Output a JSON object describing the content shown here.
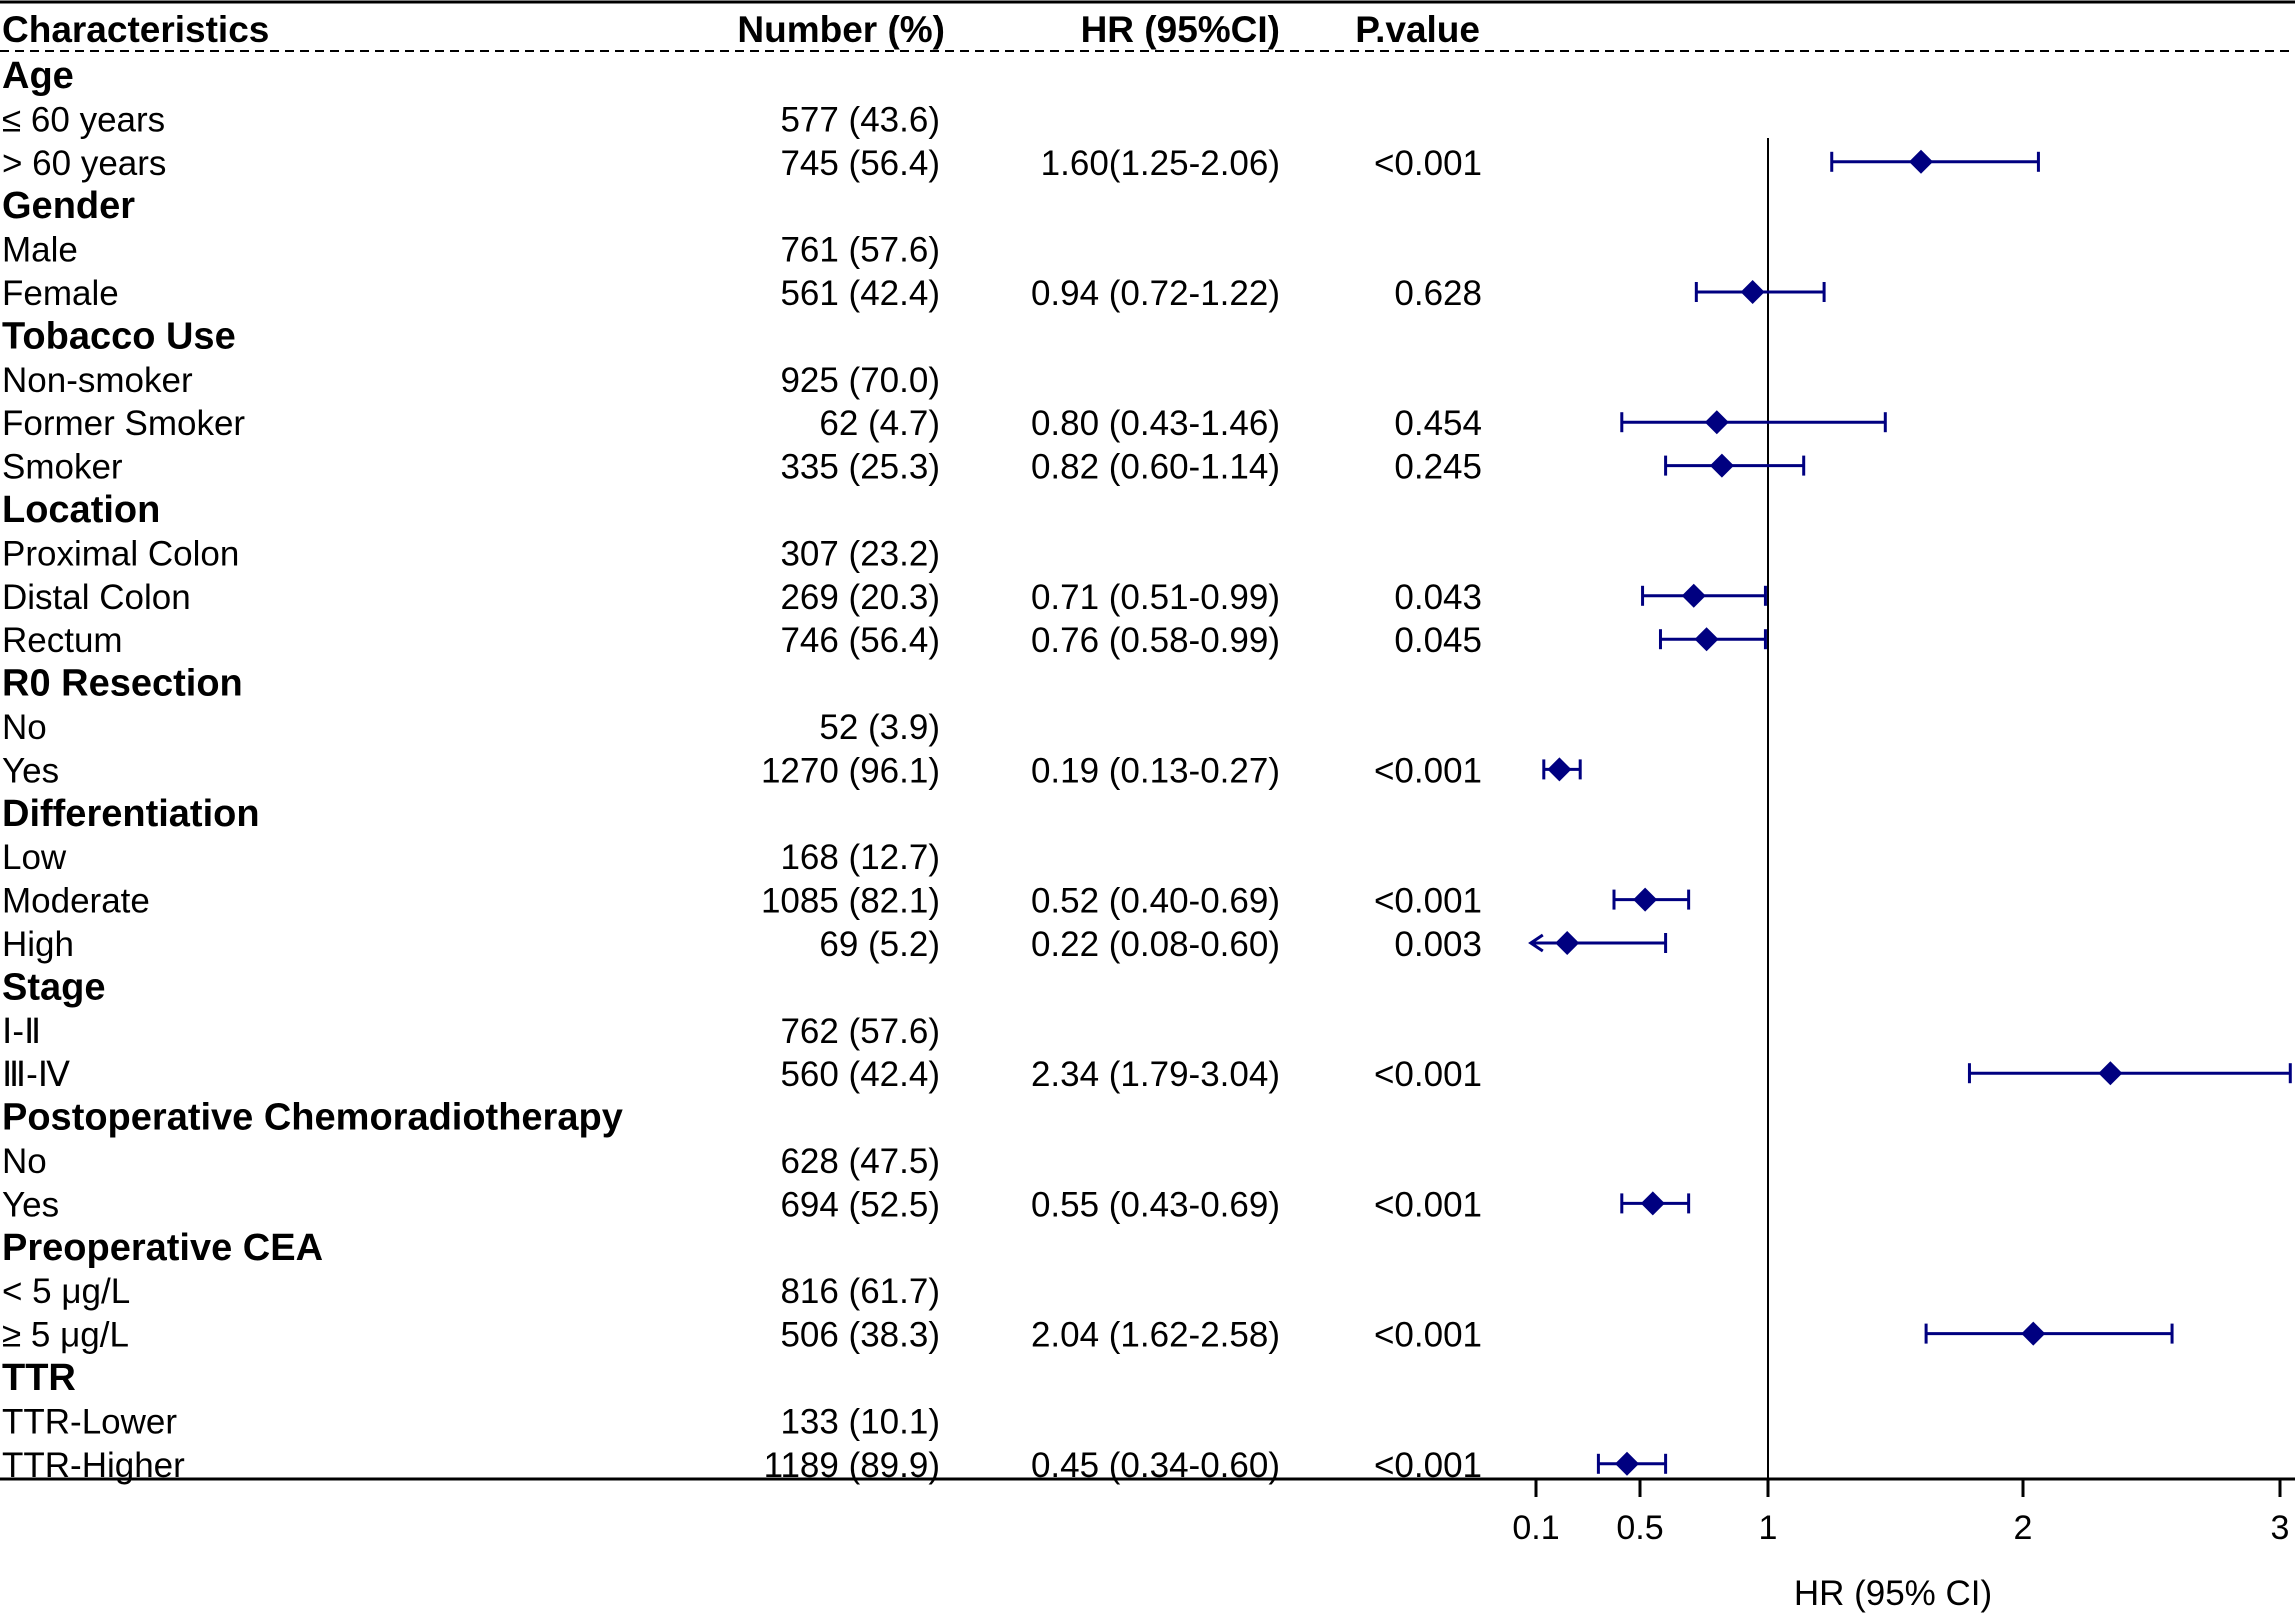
{
  "chart_data": {
    "type": "forest",
    "headers": {
      "characteristics": "Characteristics",
      "number": "Number (%)",
      "hr": "HR (95%CI)",
      "pvalue": "P.value"
    },
    "rows": [
      {
        "kind": "group",
        "label": "Age"
      },
      {
        "kind": "item",
        "label": "≤ 60 years",
        "number": "577 (43.6)"
      },
      {
        "kind": "item",
        "label": "> 60 years",
        "number": "745 (56.4)",
        "hr_text": "1.60(1.25-2.06)",
        "p": "<0.001",
        "hr": 1.6,
        "lo": 1.25,
        "hi": 2.06
      },
      {
        "kind": "group",
        "label": "Gender"
      },
      {
        "kind": "item",
        "label": "Male",
        "number": "761 (57.6)"
      },
      {
        "kind": "item",
        "label": "Female",
        "number": "561 (42.4)",
        "hr_text": "0.94 (0.72-1.22)",
        "p": "0.628",
        "hr": 0.94,
        "lo": 0.72,
        "hi": 1.22
      },
      {
        "kind": "group",
        "label": "Tobacco Use"
      },
      {
        "kind": "item",
        "label": "Non-smoker",
        "number": "925 (70.0)"
      },
      {
        "kind": "item",
        "label": "Former Smoker",
        "number": "62 (4.7)",
        "hr_text": "0.80 (0.43-1.46)",
        "p": "0.454",
        "hr": 0.8,
        "lo": 0.43,
        "hi": 1.46
      },
      {
        "kind": "item",
        "label": "Smoker",
        "number": "335 (25.3)",
        "hr_text": "0.82 (0.60-1.14)",
        "p": "0.245",
        "hr": 0.82,
        "lo": 0.6,
        "hi": 1.14
      },
      {
        "kind": "group",
        "label": "Location"
      },
      {
        "kind": "item",
        "label": "Proximal Colon",
        "number": "307 (23.2)"
      },
      {
        "kind": "item",
        "label": "Distal Colon",
        "number": "269 (20.3)",
        "hr_text": "0.71 (0.51-0.99)",
        "p": "0.043",
        "hr": 0.71,
        "lo": 0.51,
        "hi": 0.99
      },
      {
        "kind": "item",
        "label": "Rectum",
        "number": "746 (56.4)",
        "hr_text": "0.76 (0.58-0.99)",
        "p": "0.045",
        "hr": 0.76,
        "lo": 0.58,
        "hi": 0.99
      },
      {
        "kind": "group",
        "label": "R0 Resection"
      },
      {
        "kind": "item",
        "label": "No",
        "number": "52 (3.9)"
      },
      {
        "kind": "item",
        "label": "Yes",
        "number": "1270 (96.1)",
        "hr_text": "0.19 (0.13-0.27)",
        "p": "<0.001",
        "hr": 0.19,
        "lo": 0.13,
        "hi": 0.27
      },
      {
        "kind": "group",
        "label": "Differentiation"
      },
      {
        "kind": "item",
        "label": "Low",
        "number": "168 (12.7)"
      },
      {
        "kind": "item",
        "label": "Moderate",
        "number": "1085 (82.1)",
        "hr_text": "0.52 (0.40-0.69)",
        "p": "<0.001",
        "hr": 0.52,
        "lo": 0.4,
        "hi": 0.69
      },
      {
        "kind": "item",
        "label": "High",
        "number": "69 (5.2)",
        "hr_text": "0.22 (0.08-0.60)",
        "p": "0.003",
        "hr": 0.22,
        "lo": 0.08,
        "hi": 0.6,
        "arrow_left": true
      },
      {
        "kind": "group",
        "label": "Stage"
      },
      {
        "kind": "item",
        "label": "Ⅰ-Ⅱ",
        "number": "762 (57.6)"
      },
      {
        "kind": "item",
        "label": "Ⅲ-Ⅳ",
        "number": "560 (42.4)",
        "hr_text": "2.34 (1.79-3.04)",
        "p": "<0.001",
        "hr": 2.34,
        "lo": 1.79,
        "hi": 3.04
      },
      {
        "kind": "group",
        "label": "Postoperative Chemoradiotherapy"
      },
      {
        "kind": "item",
        "label": "No",
        "number": "628 (47.5)"
      },
      {
        "kind": "item",
        "label": "Yes",
        "number": "694 (52.5)",
        "hr_text": "0.55 (0.43-0.69)",
        "p": "<0.001",
        "hr": 0.55,
        "lo": 0.43,
        "hi": 0.69
      },
      {
        "kind": "group",
        "label": "Preoperative CEA"
      },
      {
        "kind": "item",
        "label": "< 5 μg/L",
        "number": "816 (61.7)"
      },
      {
        "kind": "item",
        "label": "≥ 5 μg/L",
        "number": "506 (38.3)",
        "hr_text": "2.04 (1.62-2.58)",
        "p": "<0.001",
        "hr": 2.04,
        "lo": 1.62,
        "hi": 2.58
      },
      {
        "kind": "group",
        "label": "TTR"
      },
      {
        "kind": "item",
        "label": "TTR-Lower",
        "number": "133 (10.1)"
      },
      {
        "kind": "item",
        "label": "TTR-Higher",
        "number": "1189 (89.9)",
        "hr_text": "0.45 (0.34-0.60)",
        "p": "<0.001",
        "hr": 0.45,
        "lo": 0.34,
        "hi": 0.6
      }
    ],
    "x_ticks": [
      {
        "label": "0.1",
        "value": 0.1
      },
      {
        "label": "0.5",
        "value": 0.5
      },
      {
        "label": "1",
        "value": 1
      },
      {
        "label": "2",
        "value": 2
      },
      {
        "label": "3",
        "value": 3
      }
    ],
    "xlim": [
      0.1,
      3.0
    ],
    "reference_value": 1,
    "xlabel": "HR (95% CI)",
    "marker_color": "#000080"
  }
}
